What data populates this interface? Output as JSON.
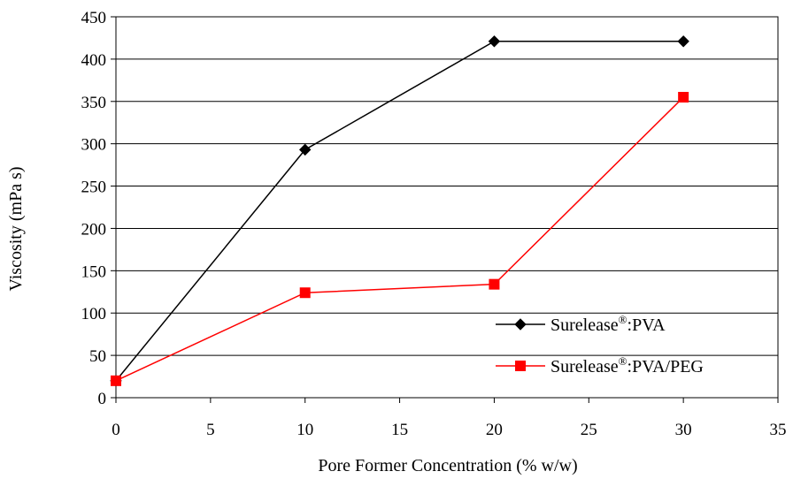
{
  "chart_data": {
    "type": "line",
    "title": "",
    "xlabel": "Pore Former Concentration (% w/w)",
    "ylabel": "Viscosity (mPa s)",
    "xlim": [
      0,
      35
    ],
    "ylim": [
      0,
      450
    ],
    "xticks": [
      0,
      5,
      10,
      15,
      20,
      25,
      30,
      35
    ],
    "yticks": [
      0,
      50,
      100,
      150,
      200,
      250,
      300,
      350,
      400,
      450
    ],
    "grid": "horizontal",
    "legend_position": "bottom-right",
    "series": [
      {
        "name_base": "Surelease",
        "name_sup": "®",
        "name_rest": ":PVA",
        "marker": "diamond",
        "color": "#000000",
        "x": [
          0,
          10,
          20,
          30
        ],
        "y": [
          20,
          293,
          421,
          421
        ]
      },
      {
        "name_base": "Surelease",
        "name_sup": "®",
        "name_rest": ":PVA/PEG",
        "marker": "square",
        "color": "#ff0000",
        "x": [
          0,
          10,
          20,
          30
        ],
        "y": [
          20,
          124,
          134,
          355
        ]
      }
    ]
  }
}
